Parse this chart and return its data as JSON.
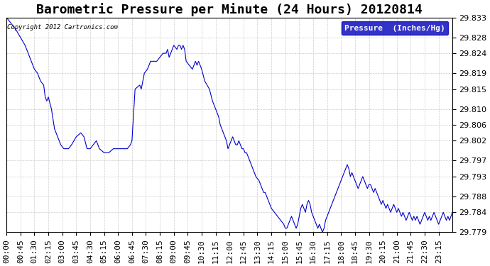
{
  "title": "Barometric Pressure per Minute (24 Hours) 20120814",
  "copyright": "Copyright 2012 Cartronics.com",
  "legend_label": "Pressure  (Inches/Hg)",
  "ylim": [
    29.779,
    29.833
  ],
  "yticks": [
    29.779,
    29.784,
    29.788,
    29.793,
    29.797,
    29.802,
    29.806,
    29.81,
    29.815,
    29.819,
    29.824,
    29.828,
    29.833
  ],
  "xtick_labels": [
    "00:00",
    "00:45",
    "01:30",
    "02:15",
    "03:00",
    "03:45",
    "04:30",
    "05:15",
    "06:00",
    "06:45",
    "07:30",
    "08:15",
    "09:00",
    "09:45",
    "10:30",
    "11:15",
    "12:00",
    "12:45",
    "13:30",
    "14:15",
    "15:00",
    "15:45",
    "16:30",
    "17:15",
    "18:00",
    "18:45",
    "19:30",
    "20:15",
    "21:00",
    "21:45",
    "22:30",
    "23:15"
  ],
  "line_color": "#0000cc",
  "background_color": "#ffffff",
  "grid_color": "#cccccc",
  "title_fontsize": 13,
  "tick_fontsize": 8,
  "keypoints": [
    [
      0,
      29.833
    ],
    [
      30,
      29.83
    ],
    [
      60,
      29.826
    ],
    [
      75,
      29.823
    ],
    [
      90,
      29.82
    ],
    [
      100,
      29.819
    ],
    [
      110,
      29.817
    ],
    [
      120,
      29.816
    ],
    [
      125,
      29.813
    ],
    [
      130,
      29.812
    ],
    [
      135,
      29.813
    ],
    [
      145,
      29.81
    ],
    [
      155,
      29.805
    ],
    [
      165,
      29.803
    ],
    [
      175,
      29.801
    ],
    [
      185,
      29.8
    ],
    [
      200,
      29.8
    ],
    [
      210,
      29.801
    ],
    [
      225,
      29.803
    ],
    [
      240,
      29.804
    ],
    [
      250,
      29.803
    ],
    [
      260,
      29.8
    ],
    [
      270,
      29.8
    ],
    [
      280,
      29.801
    ],
    [
      290,
      29.802
    ],
    [
      300,
      29.8
    ],
    [
      315,
      29.799
    ],
    [
      330,
      29.799
    ],
    [
      345,
      29.8
    ],
    [
      360,
      29.8
    ],
    [
      375,
      29.8
    ],
    [
      390,
      29.8
    ],
    [
      400,
      29.801
    ],
    [
      405,
      29.802
    ],
    [
      415,
      29.815
    ],
    [
      430,
      29.816
    ],
    [
      435,
      29.815
    ],
    [
      445,
      29.819
    ],
    [
      455,
      29.82
    ],
    [
      465,
      29.822
    ],
    [
      475,
      29.822
    ],
    [
      485,
      29.822
    ],
    [
      495,
      29.823
    ],
    [
      505,
      29.824
    ],
    [
      515,
      29.824
    ],
    [
      520,
      29.825
    ],
    [
      525,
      29.823
    ],
    [
      530,
      29.824
    ],
    [
      540,
      29.826
    ],
    [
      550,
      29.825
    ],
    [
      555,
      29.826
    ],
    [
      560,
      29.826
    ],
    [
      565,
      29.825
    ],
    [
      570,
      29.826
    ],
    [
      575,
      29.825
    ],
    [
      580,
      29.822
    ],
    [
      590,
      29.821
    ],
    [
      600,
      29.82
    ],
    [
      610,
      29.822
    ],
    [
      615,
      29.821
    ],
    [
      620,
      29.822
    ],
    [
      625,
      29.821
    ],
    [
      630,
      29.82
    ],
    [
      640,
      29.817
    ],
    [
      655,
      29.815
    ],
    [
      665,
      29.812
    ],
    [
      670,
      29.811
    ],
    [
      675,
      29.81
    ],
    [
      680,
      29.809
    ],
    [
      685,
      29.808
    ],
    [
      690,
      29.806
    ],
    [
      695,
      29.805
    ],
    [
      700,
      29.804
    ],
    [
      705,
      29.803
    ],
    [
      710,
      29.802
    ],
    [
      715,
      29.8
    ],
    [
      725,
      29.802
    ],
    [
      730,
      29.803
    ],
    [
      735,
      29.802
    ],
    [
      740,
      29.801
    ],
    [
      745,
      29.801
    ],
    [
      750,
      29.802
    ],
    [
      755,
      29.801
    ],
    [
      760,
      29.8
    ],
    [
      765,
      29.8
    ],
    [
      770,
      29.799
    ],
    [
      775,
      29.799
    ],
    [
      780,
      29.798
    ],
    [
      785,
      29.797
    ],
    [
      790,
      29.796
    ],
    [
      795,
      29.795
    ],
    [
      805,
      29.793
    ],
    [
      815,
      29.792
    ],
    [
      820,
      29.791
    ],
    [
      825,
      29.79
    ],
    [
      830,
      29.789
    ],
    [
      835,
      29.789
    ],
    [
      840,
      29.788
    ],
    [
      845,
      29.787
    ],
    [
      850,
      29.786
    ],
    [
      855,
      29.785
    ],
    [
      865,
      29.784
    ],
    [
      875,
      29.783
    ],
    [
      885,
      29.782
    ],
    [
      895,
      29.781
    ],
    [
      900,
      29.78
    ],
    [
      905,
      29.78
    ],
    [
      910,
      29.781
    ],
    [
      915,
      29.782
    ],
    [
      920,
      29.783
    ],
    [
      925,
      29.782
    ],
    [
      930,
      29.781
    ],
    [
      935,
      29.78
    ],
    [
      940,
      29.781
    ],
    [
      945,
      29.783
    ],
    [
      950,
      29.785
    ],
    [
      955,
      29.786
    ],
    [
      960,
      29.785
    ],
    [
      965,
      29.784
    ],
    [
      970,
      29.786
    ],
    [
      975,
      29.787
    ],
    [
      980,
      29.786
    ],
    [
      985,
      29.784
    ],
    [
      990,
      29.783
    ],
    [
      995,
      29.782
    ],
    [
      1000,
      29.781
    ],
    [
      1005,
      29.78
    ],
    [
      1010,
      29.781
    ],
    [
      1015,
      29.78
    ],
    [
      1020,
      29.779
    ],
    [
      1025,
      29.78
    ],
    [
      1030,
      29.782
    ],
    [
      1035,
      29.783
    ],
    [
      1040,
      29.784
    ],
    [
      1045,
      29.785
    ],
    [
      1055,
      29.787
    ],
    [
      1060,
      29.788
    ],
    [
      1065,
      29.789
    ],
    [
      1070,
      29.79
    ],
    [
      1075,
      29.791
    ],
    [
      1080,
      29.792
    ],
    [
      1085,
      29.793
    ],
    [
      1090,
      29.794
    ],
    [
      1095,
      29.795
    ],
    [
      1100,
      29.796
    ],
    [
      1105,
      29.795
    ],
    [
      1110,
      29.793
    ],
    [
      1115,
      29.794
    ],
    [
      1120,
      29.793
    ],
    [
      1125,
      29.792
    ],
    [
      1130,
      29.791
    ],
    [
      1135,
      29.79
    ],
    [
      1140,
      29.791
    ],
    [
      1145,
      29.792
    ],
    [
      1150,
      29.793
    ],
    [
      1155,
      29.792
    ],
    [
      1160,
      29.791
    ],
    [
      1165,
      29.79
    ],
    [
      1170,
      29.791
    ],
    [
      1175,
      29.791
    ],
    [
      1180,
      29.79
    ],
    [
      1185,
      29.789
    ],
    [
      1190,
      29.79
    ],
    [
      1195,
      29.789
    ],
    [
      1200,
      29.788
    ],
    [
      1205,
      29.787
    ],
    [
      1210,
      29.786
    ],
    [
      1215,
      29.787
    ],
    [
      1220,
      29.786
    ],
    [
      1225,
      29.785
    ],
    [
      1230,
      29.786
    ],
    [
      1235,
      29.785
    ],
    [
      1240,
      29.784
    ],
    [
      1245,
      29.785
    ],
    [
      1250,
      29.786
    ],
    [
      1255,
      29.785
    ],
    [
      1260,
      29.784
    ],
    [
      1265,
      29.785
    ],
    [
      1270,
      29.784
    ],
    [
      1275,
      29.783
    ],
    [
      1280,
      29.784
    ],
    [
      1285,
      29.783
    ],
    [
      1290,
      29.782
    ],
    [
      1295,
      29.783
    ],
    [
      1300,
      29.784
    ],
    [
      1305,
      29.783
    ],
    [
      1310,
      29.782
    ],
    [
      1315,
      29.783
    ],
    [
      1320,
      29.782
    ],
    [
      1325,
      29.783
    ],
    [
      1330,
      29.782
    ],
    [
      1335,
      29.781
    ],
    [
      1340,
      29.782
    ],
    [
      1345,
      29.783
    ],
    [
      1350,
      29.784
    ],
    [
      1355,
      29.783
    ],
    [
      1360,
      29.782
    ],
    [
      1365,
      29.783
    ],
    [
      1370,
      29.782
    ],
    [
      1375,
      29.783
    ],
    [
      1380,
      29.784
    ],
    [
      1385,
      29.783
    ],
    [
      1390,
      29.782
    ],
    [
      1395,
      29.781
    ],
    [
      1400,
      29.782
    ],
    [
      1405,
      29.783
    ],
    [
      1410,
      29.784
    ],
    [
      1415,
      29.783
    ],
    [
      1420,
      29.782
    ],
    [
      1425,
      29.783
    ],
    [
      1430,
      29.782
    ],
    [
      1435,
      29.783
    ],
    [
      1439,
      29.784
    ]
  ]
}
